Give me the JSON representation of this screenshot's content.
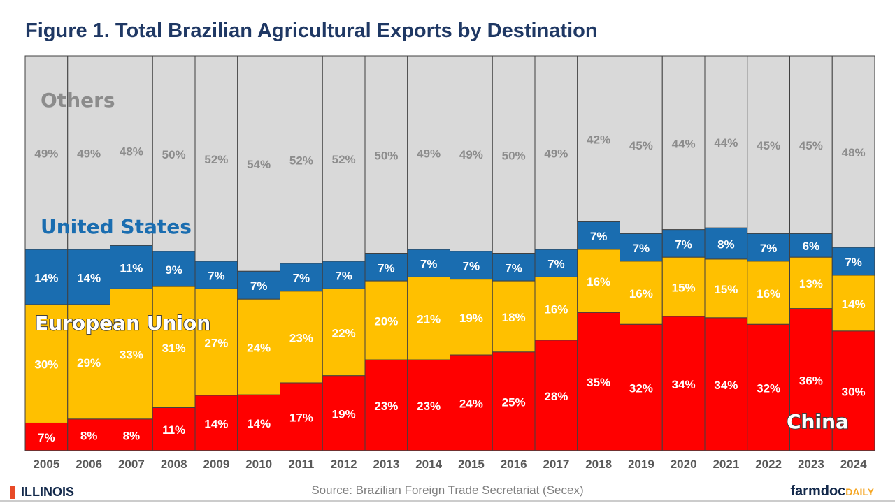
{
  "chart_data": {
    "type": "bar",
    "stacked": true,
    "normalized": true,
    "title": "Figure 1. Total Brazilian Agricultural Exports by Destination",
    "categories": [
      "2005",
      "2006",
      "2007",
      "2008",
      "2009",
      "2010",
      "2011",
      "2012",
      "2013",
      "2014",
      "2015",
      "2016",
      "2017",
      "2018",
      "2019",
      "2020",
      "2021",
      "2022",
      "2023",
      "2024"
    ],
    "series": [
      {
        "name": "China",
        "color": "#ff0000",
        "label_color": "#ffffff",
        "values": [
          7,
          8,
          8,
          11,
          14,
          14,
          17,
          19,
          23,
          23,
          24,
          25,
          28,
          35,
          32,
          34,
          34,
          32,
          36,
          30
        ]
      },
      {
        "name": "European Union",
        "color": "#ffc000",
        "label_color": "#ffffff",
        "values": [
          30,
          29,
          33,
          31,
          27,
          24,
          23,
          22,
          20,
          21,
          19,
          18,
          16,
          16,
          16,
          15,
          15,
          16,
          13,
          14
        ]
      },
      {
        "name": "United States",
        "color": "#1a6db0",
        "label_color": "#ffffff",
        "values": [
          14,
          14,
          11,
          9,
          7,
          7,
          7,
          7,
          7,
          7,
          7,
          7,
          7,
          7,
          7,
          7,
          8,
          7,
          6,
          7
        ]
      },
      {
        "name": "Others",
        "color": "#d9d9d9",
        "label_color": "#8c8c8c",
        "values": [
          49,
          49,
          48,
          50,
          52,
          54,
          52,
          52,
          50,
          49,
          49,
          50,
          49,
          42,
          45,
          44,
          44,
          45,
          45,
          48
        ]
      }
    ],
    "value_format": "%",
    "ylim": [
      0,
      100
    ],
    "grid": false,
    "legend": "inline labels on chart"
  },
  "source": "Source: Brazilian  Foreign Trade Secretariat (Secex)",
  "logos": {
    "left": "ILLINOIS",
    "right_main": "farmdoc",
    "right_accent": "DAILY"
  }
}
